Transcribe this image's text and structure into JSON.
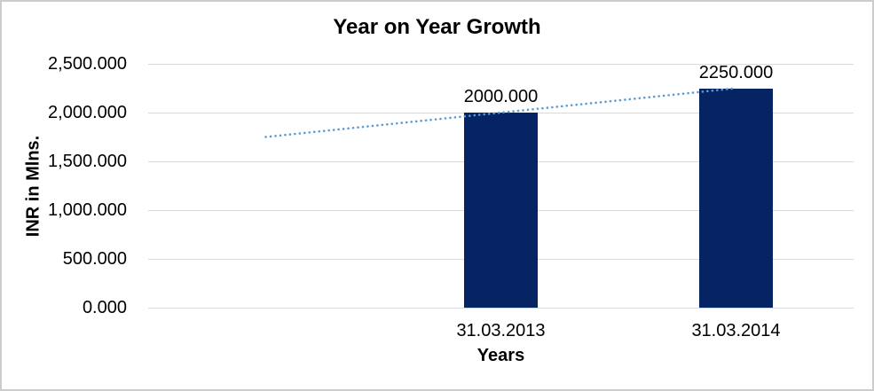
{
  "frame": {
    "border_color": "#cccccc",
    "background": "#ffffff"
  },
  "chart_data": {
    "type": "bar",
    "title": "Year on Year Growth",
    "xlabel": "Years",
    "ylabel": "INR in Mlns.",
    "categories": [
      "",
      "31.03.2013",
      "31.03.2014"
    ],
    "values": [
      null,
      2000.0,
      2250.0
    ],
    "data_labels": [
      null,
      "2000.000",
      "2250.000"
    ],
    "ylim": [
      0,
      2500
    ],
    "ytick_interval": 500,
    "yticks": [
      {
        "value": 2500,
        "label": "2,500.000"
      },
      {
        "value": 2000,
        "label": "2,000.000"
      },
      {
        "value": 1500,
        "label": "1,500.000"
      },
      {
        "value": 1000,
        "label": "1,000.000"
      },
      {
        "value": 500,
        "label": "500.000"
      },
      {
        "value": 0,
        "label": "0.000"
      }
    ],
    "grid": true,
    "legend": false,
    "colors": {
      "bar": "#062363",
      "trendline": "#5b9bd5",
      "gridline": "#d9d9d9",
      "text": "#000000"
    },
    "trendline": {
      "type": "linear",
      "style": "dotted",
      "points": [
        {
          "slot": 0,
          "value": 1750
        },
        {
          "slot": 2,
          "value": 2250
        }
      ]
    }
  }
}
